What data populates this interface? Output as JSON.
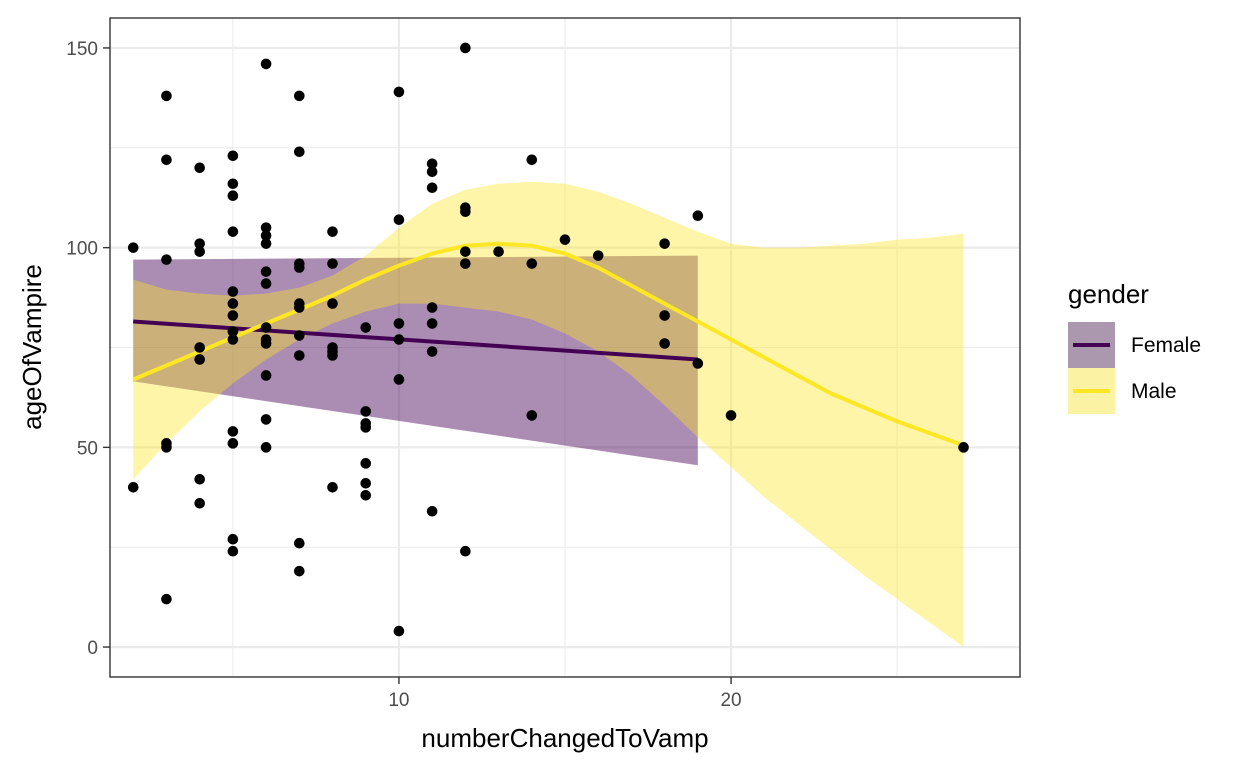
{
  "chart_data": {
    "type": "scatter",
    "xlabel": "numberChangedToVamp",
    "ylabel": "ageOfVampire",
    "xlim": [
      1.3,
      28.7
    ],
    "ylim": [
      -7.5,
      157.5
    ],
    "x_ticks": [
      10,
      20
    ],
    "x_minor_ticks": [
      5,
      15,
      25
    ],
    "y_ticks": [
      0,
      50,
      100,
      150
    ],
    "y_minor_ticks": [
      25,
      75,
      125
    ],
    "grid": true,
    "legend": {
      "title": "gender",
      "placement": "right",
      "entries": [
        {
          "label": "Female",
          "line_color": "#440154",
          "band_color": "#ab98ae"
        },
        {
          "label": "Male",
          "line_color": "#fde725",
          "band_color": "#fcf2a3"
        }
      ]
    },
    "points": [
      [
        2,
        100
      ],
      [
        2,
        40
      ],
      [
        3,
        138
      ],
      [
        3,
        122
      ],
      [
        3,
        97
      ],
      [
        3,
        51
      ],
      [
        3,
        50
      ],
      [
        3,
        12
      ],
      [
        4,
        120
      ],
      [
        4,
        101
      ],
      [
        4,
        99
      ],
      [
        4,
        75
      ],
      [
        4,
        72
      ],
      [
        4,
        42
      ],
      [
        4,
        36
      ],
      [
        5,
        123
      ],
      [
        5,
        116
      ],
      [
        5,
        113
      ],
      [
        5,
        104
      ],
      [
        5,
        89
      ],
      [
        5,
        86
      ],
      [
        5,
        83
      ],
      [
        5,
        79
      ],
      [
        5,
        77
      ],
      [
        5,
        54
      ],
      [
        5,
        51
      ],
      [
        5,
        27
      ],
      [
        5,
        24
      ],
      [
        6,
        146
      ],
      [
        6,
        105
      ],
      [
        6,
        103
      ],
      [
        6,
        101
      ],
      [
        6,
        94
      ],
      [
        6,
        91
      ],
      [
        6,
        80
      ],
      [
        6,
        77
      ],
      [
        6,
        76
      ],
      [
        6,
        68
      ],
      [
        6,
        57
      ],
      [
        6,
        50
      ],
      [
        7,
        138
      ],
      [
        7,
        124
      ],
      [
        7,
        96
      ],
      [
        7,
        95
      ],
      [
        7,
        86
      ],
      [
        7,
        85
      ],
      [
        7,
        78
      ],
      [
        7,
        73
      ],
      [
        7,
        26
      ],
      [
        7,
        19
      ],
      [
        8,
        104
      ],
      [
        8,
        96
      ],
      [
        8,
        86
      ],
      [
        8,
        75
      ],
      [
        8,
        74
      ],
      [
        8,
        73
      ],
      [
        8,
        40
      ],
      [
        9,
        80
      ],
      [
        9,
        59
      ],
      [
        9,
        56
      ],
      [
        9,
        55
      ],
      [
        9,
        46
      ],
      [
        9,
        41
      ],
      [
        9,
        38
      ],
      [
        10,
        139
      ],
      [
        10,
        107
      ],
      [
        10,
        81
      ],
      [
        10,
        77
      ],
      [
        10,
        67
      ],
      [
        10,
        4
      ],
      [
        11,
        121
      ],
      [
        11,
        119
      ],
      [
        11,
        115
      ],
      [
        11,
        85
      ],
      [
        11,
        81
      ],
      [
        11,
        74
      ],
      [
        11,
        34
      ],
      [
        12,
        150
      ],
      [
        12,
        110
      ],
      [
        12,
        109
      ],
      [
        12,
        99
      ],
      [
        12,
        96
      ],
      [
        12,
        24
      ],
      [
        13,
        99
      ],
      [
        14,
        122
      ],
      [
        14,
        96
      ],
      [
        14,
        58
      ],
      [
        15,
        102
      ],
      [
        16,
        98
      ],
      [
        18,
        101
      ],
      [
        18,
        83
      ],
      [
        18,
        76
      ],
      [
        19,
        108
      ],
      [
        19,
        71
      ],
      [
        20,
        58
      ],
      [
        27,
        50
      ]
    ],
    "series": [
      {
        "name": "Female",
        "x": [
          2,
          19
        ],
        "fit": [
          81.5,
          72
        ],
        "ci_upper": [
          97,
          98
        ],
        "ci_lower": [
          66.5,
          45.5
        ]
      },
      {
        "name": "Male",
        "x": [
          2,
          3,
          4,
          5,
          6,
          7,
          8,
          9,
          10,
          11,
          12,
          13,
          14,
          15,
          16,
          17,
          18,
          19,
          20,
          21,
          22,
          23,
          24,
          25,
          26,
          27
        ],
        "fit": [
          67,
          70.5,
          74,
          77.5,
          81,
          84.5,
          88,
          92,
          95.5,
          98.5,
          100.5,
          101,
          100.5,
          98.5,
          95,
          90.5,
          86,
          81.5,
          77,
          72.5,
          68,
          63.5,
          60,
          56.5,
          53.5,
          50.5
        ],
        "ci_upper": [
          92,
          89.5,
          88.5,
          88,
          88.5,
          90,
          93,
          98,
          105,
          111,
          114.5,
          116,
          116.5,
          116,
          114,
          111,
          107.5,
          104,
          101,
          100,
          100,
          100.5,
          101,
          102,
          102.5,
          103.5
        ],
        "ci_lower": [
          42,
          51,
          59,
          66,
          72,
          77,
          81,
          84,
          86,
          86,
          85,
          84,
          82,
          78.5,
          74,
          68,
          60.5,
          52.5,
          45,
          37.5,
          31,
          24.5,
          18,
          12,
          6,
          0
        ]
      }
    ]
  }
}
